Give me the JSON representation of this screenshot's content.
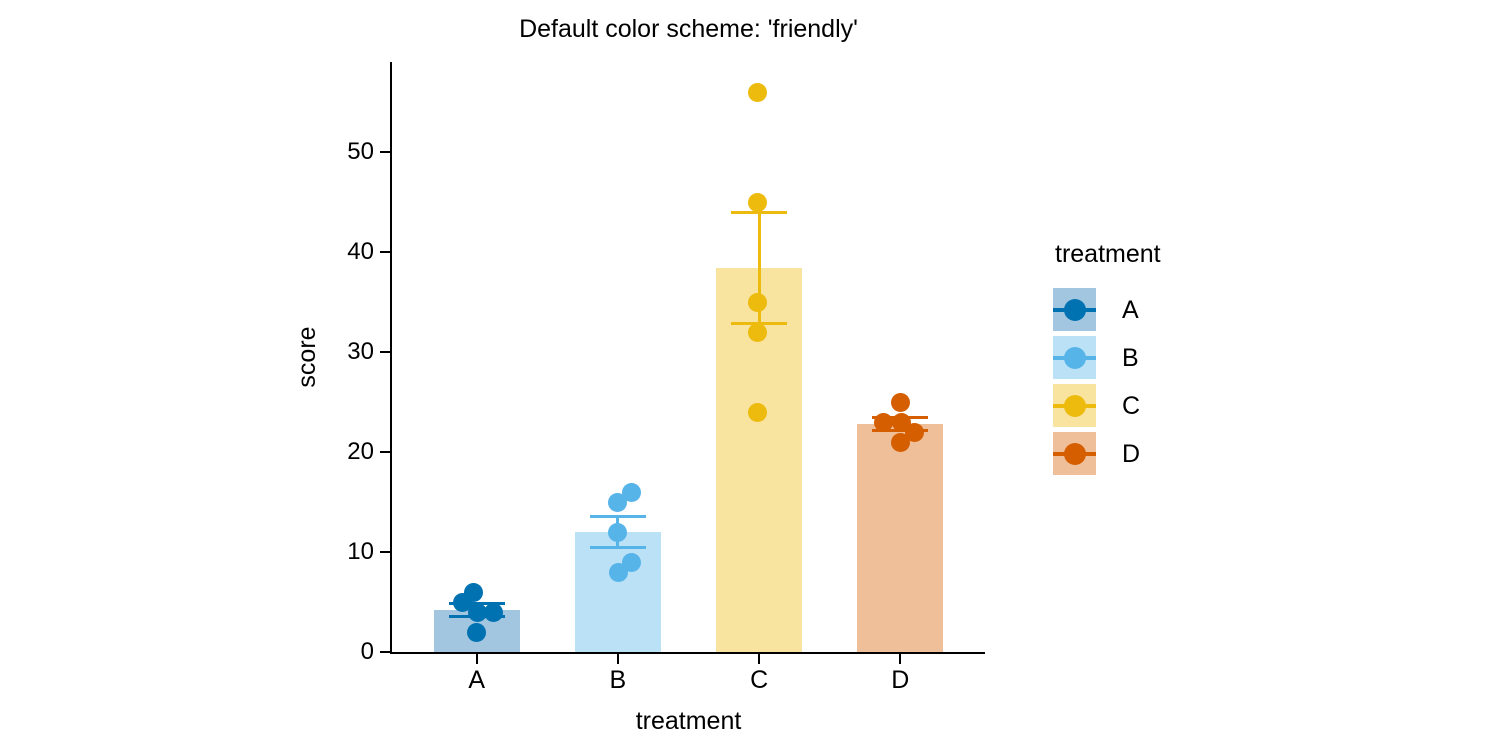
{
  "chart_data": {
    "type": "bar",
    "title": "Default color scheme: 'friendly'",
    "xlabel": "treatment",
    "ylabel": "score",
    "ylim": [
      0,
      59
    ],
    "yticks": [
      0,
      10,
      20,
      30,
      40,
      50
    ],
    "categories": [
      "A",
      "B",
      "C",
      "D"
    ],
    "grid": "off",
    "error_bar": "mean ± sem",
    "bar_alpha_note": "bars filled with lightened group color",
    "groups": [
      {
        "label": "A",
        "point_color": "#0072B2",
        "fill_color": "#A2C6DF",
        "values": [
          6,
          5,
          4,
          4,
          2
        ],
        "mean": 4.2,
        "sem": 0.66,
        "points": [
          {
            "v": 6,
            "dx": -3
          },
          {
            "v": 5,
            "dx": -14
          },
          {
            "v": 4,
            "dx": 1
          },
          {
            "v": 4,
            "dx": 17
          },
          {
            "v": 2,
            "dx": 0
          }
        ]
      },
      {
        "label": "B",
        "point_color": "#56B4E9",
        "fill_color": "#BBE1F6",
        "values": [
          16,
          15,
          12,
          9,
          8
        ],
        "mean": 12,
        "sem": 1.58,
        "points": [
          {
            "v": 16,
            "dx": 14
          },
          {
            "v": 15,
            "dx": 0
          },
          {
            "v": 12,
            "dx": 0
          },
          {
            "v": 9,
            "dx": 14
          },
          {
            "v": 8,
            "dx": 1
          }
        ]
      },
      {
        "label": "C",
        "point_color": "#EDBB0D",
        "fill_color": "#F8E39F",
        "values": [
          56,
          45,
          35,
          32,
          24
        ],
        "mean": 38.4,
        "sem": 5.54,
        "points": [
          {
            "v": 56,
            "dx": -2
          },
          {
            "v": 45,
            "dx": -2
          },
          {
            "v": 35,
            "dx": -2
          },
          {
            "v": 32,
            "dx": -2
          },
          {
            "v": 24,
            "dx": -2
          }
        ]
      },
      {
        "label": "D",
        "point_color": "#D55E00",
        "fill_color": "#EEBF99",
        "values": [
          25,
          23,
          23,
          22,
          21
        ],
        "mean": 22.8,
        "sem": 0.66,
        "points": [
          {
            "v": 25,
            "dx": 0
          },
          {
            "v": 23,
            "dx": -17
          },
          {
            "v": 23,
            "dx": 1
          },
          {
            "v": 22,
            "dx": 14
          },
          {
            "v": 21,
            "dx": 0
          }
        ]
      }
    ],
    "legend": {
      "title": "treatment",
      "position": "right",
      "entries": [
        "A",
        "B",
        "C",
        "D"
      ]
    },
    "axis_color": "#000000"
  }
}
